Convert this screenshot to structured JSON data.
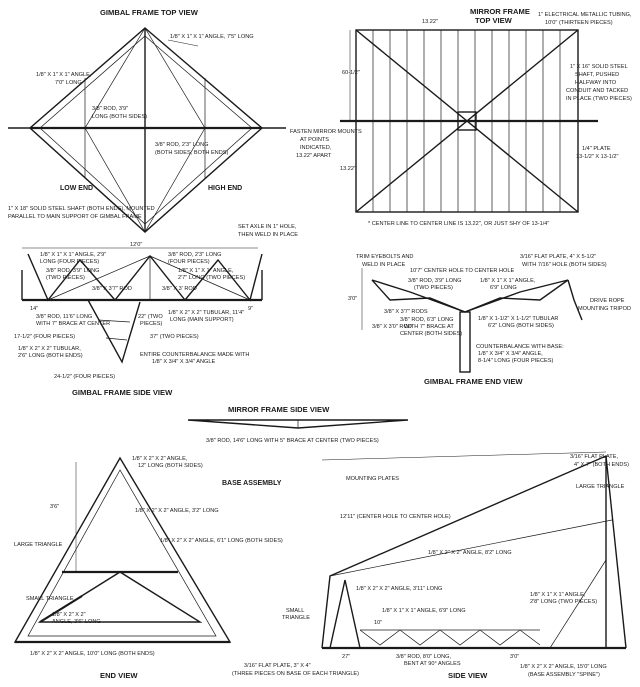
{
  "gimbal_top": {
    "title": "GIMBAL FRAME TOP VIEW",
    "angle_top": "1/8\" X 1\" X 1\" ANGLE, 7'5\" LONG",
    "angle_left_1": "1/8\" X 1\" X 1\" ANGLE,",
    "angle_left_2": "7'0\" LONG",
    "rod_a_1": "3/8\" ROD, 3'9\"",
    "rod_a_2": "LONG (BOTH SIDES)",
    "rod_b_1": "3/8\" ROD, 2'3\" LONG",
    "rod_b_2": "(BOTH SIDES, BOTH ENDS)",
    "low_end": "LOW END",
    "high_end": "HIGH END",
    "shaft_1": "1\" X 18\" SOLID STEEL SHAFT (BOTH ENDS), MOUNTED",
    "shaft_2": "PARALLEL TO MAIN SUPPORT OF GIMBAL FRAME",
    "axle_1": "SET AXLE IN 1\" HOLE,",
    "axle_2": "THEN WELD IN PLACE"
  },
  "gimbal_side": {
    "title": "GIMBAL FRAME SIDE VIEW",
    "width": "12'0\"",
    "angle_2_9_1": "1/8\" X 1\" X 1\" ANGLE, 2'9\"",
    "angle_2_9_2": "LONG (FOUR PIECES)",
    "rod_3_9_1": "3/8\" ROD, 3'9\" LONG",
    "rod_3_9_2": "(TWO PIECES)",
    "rod_2_3_1": "3/8\" ROD, 2'3\" LONG",
    "rod_2_3_2": "(FOUR PIECES)",
    "angle_2_7_1": "1/8\" X 1\" X 1\" ANGLE,",
    "angle_2_7_2": "2'7\" LONG (TWO PIECES)",
    "rod_3_7": "3/8\" X 3'7\" ROD",
    "rod_3": "3/8\" X 3' ROD",
    "d_14": "14\"",
    "rod_11_6_1": "3/8\" ROD, 11'6\" LONG",
    "rod_11_6_2": "WITH 7\" BRACE AT CENTER",
    "d_22_1": "22\" (TWO",
    "d_22_2": "PIECES)",
    "tub_11_4_1": "1/8\" X 2\" X 2\" TUBULAR, 11'4\"",
    "tub_11_4_2": "LONG (MAIN SUPPORT)",
    "d_9": "9\"",
    "d_17_1": "17-1/2\" (FOUR PIECES)",
    "tub_2_6_1": "1/8\" X 2\" X 2\" TUBULAR,",
    "tub_2_6_2": "2'6\" LONG (BOTH ENDS)",
    "d_37": "37\" (TWO PIECES)",
    "cb_1": "ENTIRE COUNTERBALANCE MADE WITH",
    "cb_2": "1/8\" X 3/4\" X 3/4\" ANGLE",
    "d_24": "24-1/2\" (FOUR PIECES)"
  },
  "mirror_top": {
    "title_1": "MIRROR FRAME",
    "title_2": "TOP VIEW",
    "spacing_top": "13.22\"",
    "emt_1": "1\" ELECTRICAL METALLIC TUBING,",
    "emt_2": "10'0\" (THIRTEEN PIECES)",
    "height": "60-1/2\"",
    "shaft_1": "1\" X 16\" SOLID STEEL",
    "shaft_2": "SHAFT, PUSHED",
    "shaft_3": "HALFWAY INTO",
    "shaft_4": "CONDUIT AND TACKED",
    "shaft_5": "IN PLACE (TWO PIECES)",
    "mounts_1": "FASTEN MIRROR MOUNTS",
    "mounts_2": "AT POINTS",
    "mounts_3": "INDICATED,",
    "mounts_4": "13.22\" APART",
    "spacing_side": "13.22\"",
    "plate_1": "1/4\" PLATE",
    "plate_2": "13-1/2\" X 13-1/2\"",
    "note": "* CENTER LINE TO CENTER LINE IS 13.22\", OR JUST SHY OF 13-1/4\""
  },
  "gimbal_end": {
    "title": "GIMBAL FRAME END VIEW",
    "trim_1": "TRIM EYEBOLTS AND",
    "trim_2": "WELD IN PLACE",
    "flat_1": "3/16\" FLAT PLATE, 4\" X 5-1/2\"",
    "flat_2": "WITH 7/16\" HOLE (BOTH SIDES)",
    "center_hole": "10'7\" CENTER HOLE TO CENTER HOLE",
    "rod_3_9_1": "3/8\" ROD, 3'9\" LONG",
    "rod_3_9_2": "(TWO PIECES)",
    "angle_6_9_1": "1/8\" X 1\" X 1\" ANGLE,",
    "angle_6_9_2": "6'9\" LONG",
    "height": "3'0\"",
    "rope_1": "DRIVE ROPE",
    "rope_2": "MOUNTING TRIPOD",
    "rods_3_7": "3/8\" X 3'7\" RODS",
    "rod_3_0": "3/8\" X 3'0\" ROD",
    "rod_6_3_1": "3/8\" ROD, 6'3\" LONG",
    "rod_6_3_2": "WITH 7\" BRACE AT",
    "rod_6_3_3": "CENTER (BOTH SIDES)",
    "tub_1": "1/8\" X 1-1/2\" X 1-1/2\" TUBULAR",
    "tub_2": "6'2\" LONG (BOTH SIDES)",
    "cb_1": "COUNTERBALANCE WITH BASE:",
    "cb_2": "1/8\" X 3/4\" X 3/4\" ANGLE,",
    "cb_3": "8-1/4\" LONG (FOUR PIECES)"
  },
  "mirror_side": {
    "title": "MIRROR FRAME SIDE VIEW",
    "rod": "3/8\" ROD, 14'6\" LONG WITH 5\" BRACE AT CENTER (TWO PIECES)"
  },
  "base": {
    "title": "BASE ASSEMBLY",
    "end_view": "END VIEW",
    "side_view": "SIDE VIEW",
    "apex_1": "1/8\" X 2\" X 2\" ANGLE,",
    "apex_2": "12\" LONG (BOTH SIDES)",
    "height": "3'6\"",
    "angle_3_2": "1/8\" X 2\" X 2\" ANGLE, 3'2\" LONG",
    "large_tri": "LARGE TRIANGLE",
    "angle_6_1": "1/8\" X 2\" X 2\" ANGLE, 6'1\" LONG (BOTH SIDES)",
    "small_tri": "SMALL TRIANGLE",
    "small_angle_1": "1/8\" X 2\" X 2\"",
    "small_angle_2": "ANGLE, 3'6\" LONG",
    "bottom_angle": "1/8\" X 2\" X 2\" ANGLE, 10'0\" LONG (BOTH ENDS)",
    "mount_plates": "MOUNTING PLATES",
    "flat_top_1": "3/16\" FLAT PLATE,",
    "flat_top_2": "4\" X 7\" (BOTH ENDS)",
    "large_tri_r": "LARGE TRIANGLE",
    "center_hole": "12'11\" (CENTER HOLE TO CENTER HOLE)",
    "angle_8_2": "1/8\" X 2\" X 2\" ANGLE, 8'2\" LONG",
    "small_tri_1": "SMALL",
    "small_tri_2": "TRIANGLE",
    "angle_3_11": "1/8\" X 2\" X 2\" ANGLE, 3'11\" LONG",
    "angle_6_9": "1/8\" X 1\" X 1\" ANGLE, 6'9\" LONG",
    "angle_2_8_1": "1/8\" X 1\" X 1\" ANGLE,",
    "angle_2_8_2": "2'8\" LONG (TWO PIECES)",
    "d_10": "10\"",
    "rod_8_1": "3/8\" ROD, 8'0\" LONG,",
    "rod_8_2": "BENT AT 90° ANGLES",
    "d_27": "27\"",
    "d_3_0": "3'0\"",
    "flat_bot_1": "3/16\" FLAT PLATE, 3\" X 4\"",
    "flat_bot_2": "(THREE PIECES ON BASE OF EACH TRIANGLE)",
    "spine_1": "1/8\" X 2\" X 2\" ANGLE, 15'0\" LONG",
    "spine_2": "(BASE ASSEMBLY \"SPINE\")"
  }
}
